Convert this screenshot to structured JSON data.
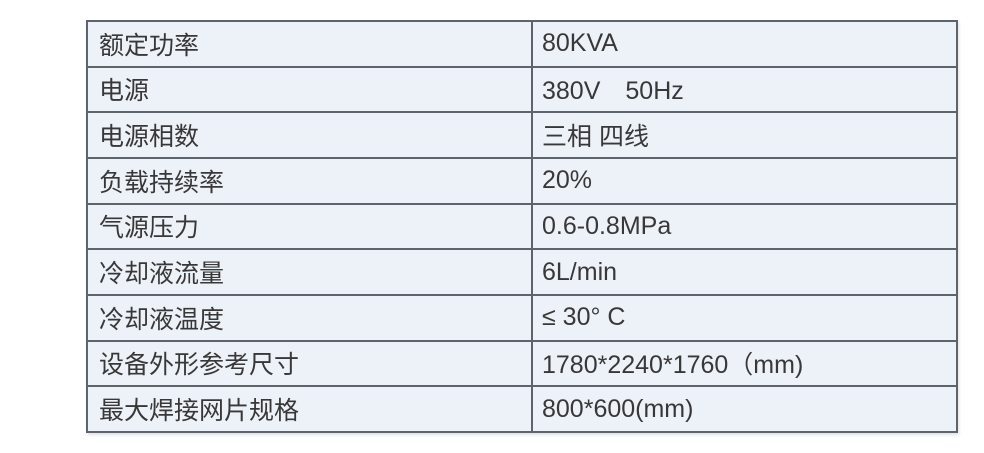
{
  "table": {
    "description": "equipment-specification-table",
    "colors": {
      "cell_background": "#edf1f8",
      "border": "#5f636b",
      "text": "#383838",
      "page_background": "#ffffff"
    },
    "rows": [
      {
        "label": "额定功率",
        "value": "80KVA"
      },
      {
        "label": "电源",
        "value": "380V　50Hz"
      },
      {
        "label": "电源相数",
        "value": "三相 四线"
      },
      {
        "label": "负载持续率",
        "value": "20%"
      },
      {
        "label": "气源压力",
        "value": "0.6-0.8MPa"
      },
      {
        "label": "冷却液流量",
        "value": "6L/min"
      },
      {
        "label": "冷却液温度",
        "value": "≤ 30° C"
      },
      {
        "label": "设备外形参考尺寸",
        "value": "1780*2240*1760（mm)"
      },
      {
        "label": "最大焊接网片规格",
        "value": "800*600(mm)"
      }
    ]
  }
}
